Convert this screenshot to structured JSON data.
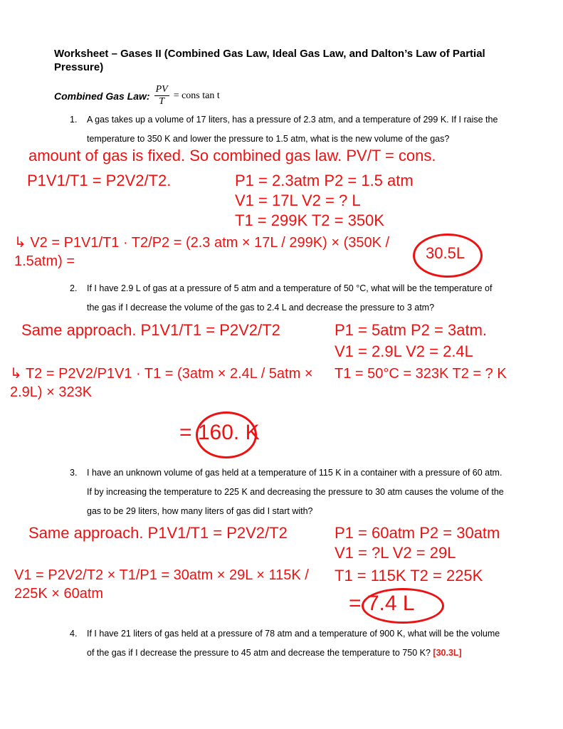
{
  "title": "Worksheet – Gases II (Combined Gas Law, Ideal Gas Law, and Dalton’s Law of Partial Pressure)",
  "combined_gas_law": {
    "label": "Combined Gas Law:",
    "numerator": "PV",
    "denominator": "T",
    "rhs": "= cons tan t"
  },
  "questions": [
    {
      "number": "1.",
      "text": "A gas takes up a volume of 17 liters, has a pressure of 2.3 atm, and a temperature of 299 K.  If I raise the temperature to 350 K and lower the pressure to 1.5 atm, what is the new volume of the gas?"
    },
    {
      "number": "2.",
      "text": "If I have 2.9 L of gas at a pressure of 5 atm and a temperature of 50 °C, what will be the temperature of the gas if I decrease the volume of the gas to 2.4 L and decrease the pressure to 3 atm?"
    },
    {
      "number": "3.",
      "text": "I have an unknown volume of gas held at a temperature of 115 K in a container with a pressure of 60 atm.  If by increasing the temperature to 225 K and decreasing the pressure to 30 atm causes the volume of the gas to be 29 liters, how many liters of gas did I start with?"
    },
    {
      "number": "4.",
      "text": "If I have 21 liters of gas held at a pressure of 78 atm and a temperature of 900 K, what will be the volume of the gas if I decrease the pressure to 45 atm and decrease the temperature to 750 K?",
      "answer": "[30.3L]"
    }
  ],
  "handwriting": {
    "q1": {
      "line1": "amount of gas is fixed. So combined gas law. PV/T = cons.",
      "law": "P1V1/T1 = P2V2/T2.",
      "p": "P1 = 2.3atm   P2 = 1.5 atm",
      "v": "V1 = 17L   V2 = ? L",
      "t": "T1 = 299K   T2 = 350K",
      "calc": "↳ V2 = P1V1/T1 · T2/P2 = (2.3 atm × 17L / 299K) × (350K / 1.5atm) =",
      "result": "30.5L"
    },
    "q2": {
      "line1": "Same approach.   P1V1/T1 = P2V2/T2",
      "p": "P1 = 5atm    P2 = 3atm.",
      "v": "V1 = 2.9L    V2 = 2.4L",
      "calc": "↳ T2 = P2V2/P1V1 · T1 = (3atm × 2.4L / 5atm × 2.9L) × 323K",
      "t": "T1 = 50°C = 323K    T2 = ? K",
      "result": "= 160.  K"
    },
    "q3": {
      "line1": "Same approach.   P1V1/T1 = P2V2/T2",
      "p": "P1 = 60atm   P2 = 30atm",
      "v": "V1 = ?L    V2 = 29L",
      "calc": "V1 = P2V2/T2 × T1/P1 = 30atm × 29L × 115K / 225K × 60atm",
      "t": "T1 = 115K   T2 = 225K",
      "result": "= 7.4 L"
    }
  }
}
